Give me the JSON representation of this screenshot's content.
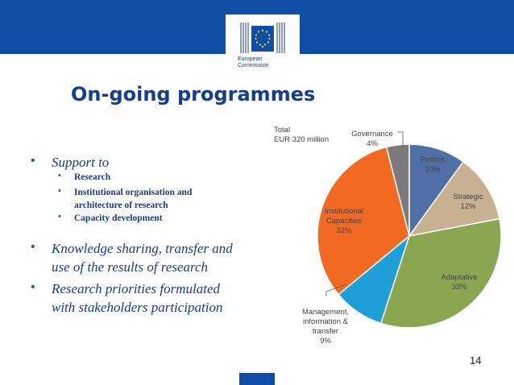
{
  "header": {
    "logo_line1": "European",
    "logo_line2": "Commission"
  },
  "slide": {
    "title": "On-going programmes",
    "bullets": [
      {
        "text_lines": [
          "Support to"
        ],
        "level": 1
      },
      {
        "text_lines": [
          "Research"
        ],
        "level": 2
      },
      {
        "text_lines": [
          "Institutional organisation and",
          "architecture of research"
        ],
        "level": 2
      },
      {
        "text_lines": [
          "Capacity development"
        ],
        "level": 2
      },
      {
        "text_lines": [
          "Knowledge sharing, transfer and",
          "use of the results of research"
        ],
        "level": 1
      },
      {
        "text_lines": [
          "Research priorities formulated",
          "with stakeholders participation"
        ],
        "level": 1
      }
    ],
    "page_number": "14"
  },
  "chart_data": {
    "type": "pie",
    "total_label": [
      "Total",
      "EUR 320 million"
    ],
    "slices": [
      {
        "label": "Politics",
        "value": 10,
        "pct_label": "10%",
        "color": "#4f6fa6"
      },
      {
        "label": "Strategic",
        "value": 12,
        "pct_label": "12%",
        "color": "#c8b190"
      },
      {
        "label": "Adaptative",
        "value": 33,
        "pct_label": "33%",
        "color": "#8ba650"
      },
      {
        "label": "Management, information & transfer",
        "label_lines": [
          "Management,",
          "information &",
          "transfer"
        ],
        "value": 9,
        "pct_label": "9%",
        "color": "#1f9fd7"
      },
      {
        "label": "Institutional Capacities",
        "label_lines": [
          "Institutional",
          "Capacities"
        ],
        "value": 32,
        "pct_label": "32%",
        "color": "#f26a22"
      },
      {
        "label": "Governance",
        "value": 4,
        "pct_label": "4%",
        "color": "#7a7a7a"
      }
    ]
  },
  "colors": {
    "brand_blue": "#0e4ea6",
    "title_blue": "#143d8f",
    "bullet_blue": "#2a5aa8"
  }
}
